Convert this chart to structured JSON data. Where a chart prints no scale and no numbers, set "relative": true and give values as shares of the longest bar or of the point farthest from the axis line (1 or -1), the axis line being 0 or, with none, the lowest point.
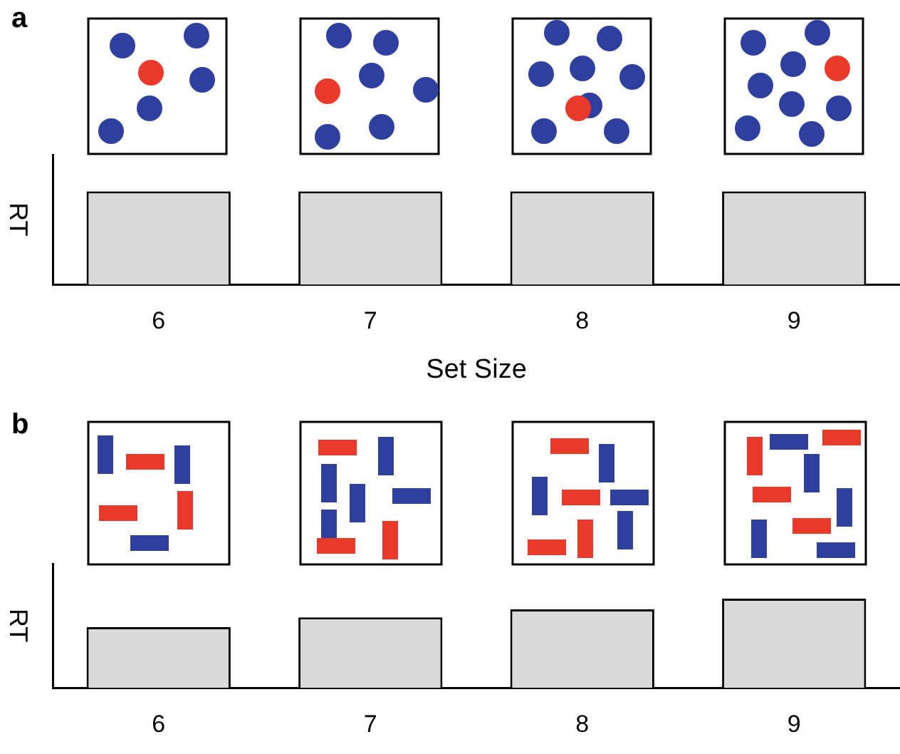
{
  "chart_data": [
    {
      "type": "bar",
      "categories": [
        "6",
        "7",
        "8",
        "9"
      ],
      "values": [
        1,
        1,
        1,
        1
      ],
      "color": "#d9d9d9",
      "relative": true,
      "xlabel": "Set Size",
      "ylabel": "RT",
      "annotations": [
        "a"
      ]
    },
    {
      "type": "bar",
      "categories": [
        "6",
        "7",
        "8",
        "9"
      ],
      "values": [
        0.68,
        0.79,
        0.88,
        1
      ],
      "color": "#d9d9d9",
      "relative": true,
      "ylabel": "RT",
      "annotations": [
        "b"
      ]
    }
  ]
}
